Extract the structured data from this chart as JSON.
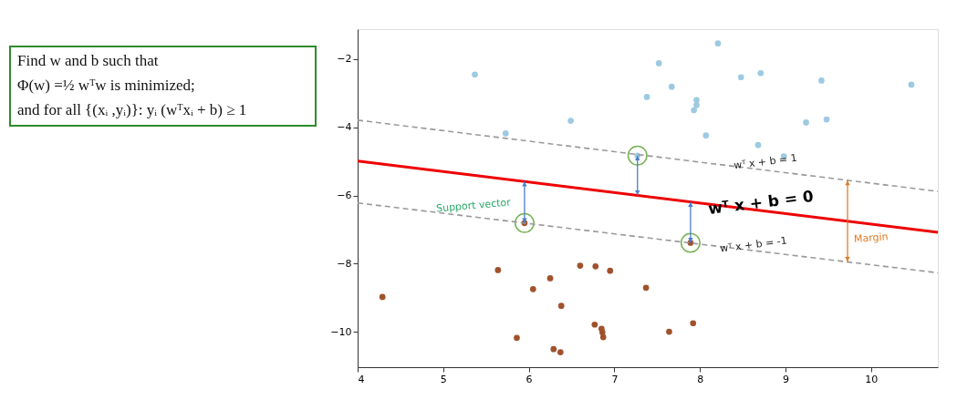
{
  "chart_data": {
    "type": "scatter",
    "xlim": [
      4,
      10.78
    ],
    "ylim": [
      -11.04,
      -1.12
    ],
    "xticks": [
      4,
      5,
      6,
      7,
      8,
      9,
      10
    ],
    "yticks": [
      -10,
      -8,
      -6,
      -4,
      -2
    ],
    "grid": false,
    "series": [
      {
        "color": "#9ecae1",
        "x": [
          5.37,
          5.73,
          6.49,
          7.38,
          7.27,
          8.21,
          7.52,
          7.67,
          8.48,
          8.71,
          9.42,
          10.47,
          7.96,
          7.96,
          7.93,
          8.07,
          9.24,
          9.48,
          8.68,
          8.98
        ],
        "values": [
          -2.45,
          -4.18,
          -3.81,
          -3.11,
          -4.83,
          -1.54,
          -2.12,
          -2.81,
          -2.53,
          -2.41,
          -2.63,
          -2.75,
          -3.2,
          -3.35,
          -3.5,
          -4.24,
          -3.86,
          -3.77,
          -4.52,
          -4.85
        ]
      },
      {
        "color": "#a0522d",
        "x": [
          5.95,
          4.29,
          5.64,
          6.05,
          6.25,
          6.6,
          6.78,
          6.95,
          6.38,
          7.37,
          6.77,
          6.85,
          6.86,
          6.87,
          5.86,
          6.29,
          6.37,
          7.64,
          7.92,
          7.89
        ],
        "values": [
          -6.81,
          -8.98,
          -8.19,
          -8.75,
          -8.43,
          -8.06,
          -8.08,
          -8.21,
          -9.24,
          -8.71,
          -9.79,
          -9.91,
          -10.02,
          -10.16,
          -10.18,
          -10.51,
          -10.6,
          -10.0,
          -9.75,
          -7.39
        ]
      },
      {
        "color": "#77b255",
        "marker": "circle",
        "x": [
          7.27,
          5.95,
          7.89
        ],
        "values": [
          -4.83,
          -6.81,
          -7.39
        ]
      },
      {
        "type": "line",
        "color": "#ee0000",
        "line_style": "solid",
        "x": [
          4,
          10.78
        ],
        "values": [
          -4.99,
          -7.08
        ]
      },
      {
        "type": "line",
        "color": "#999999",
        "line_style": "dashed",
        "x": [
          4,
          10.78
        ],
        "values": [
          -3.79,
          -5.88
        ]
      },
      {
        "type": "line",
        "color": "#999999",
        "line_style": "dashed",
        "x": [
          4,
          10.78
        ],
        "values": [
          -6.22,
          -8.27
        ]
      }
    ],
    "annotations": [
      "Find w and b such that",
      "Φ(w) =½ wᵀw  is minimized;",
      "and for all {(xᵢ ,yᵢ)}:  yᵢ (wᵀxᵢ + b) ≥ 1",
      "Support vector",
      "wᵀ x + b = 1",
      "wᵀ x + b = 0",
      "wᵀ x + b = -1",
      "Margin"
    ]
  }
}
